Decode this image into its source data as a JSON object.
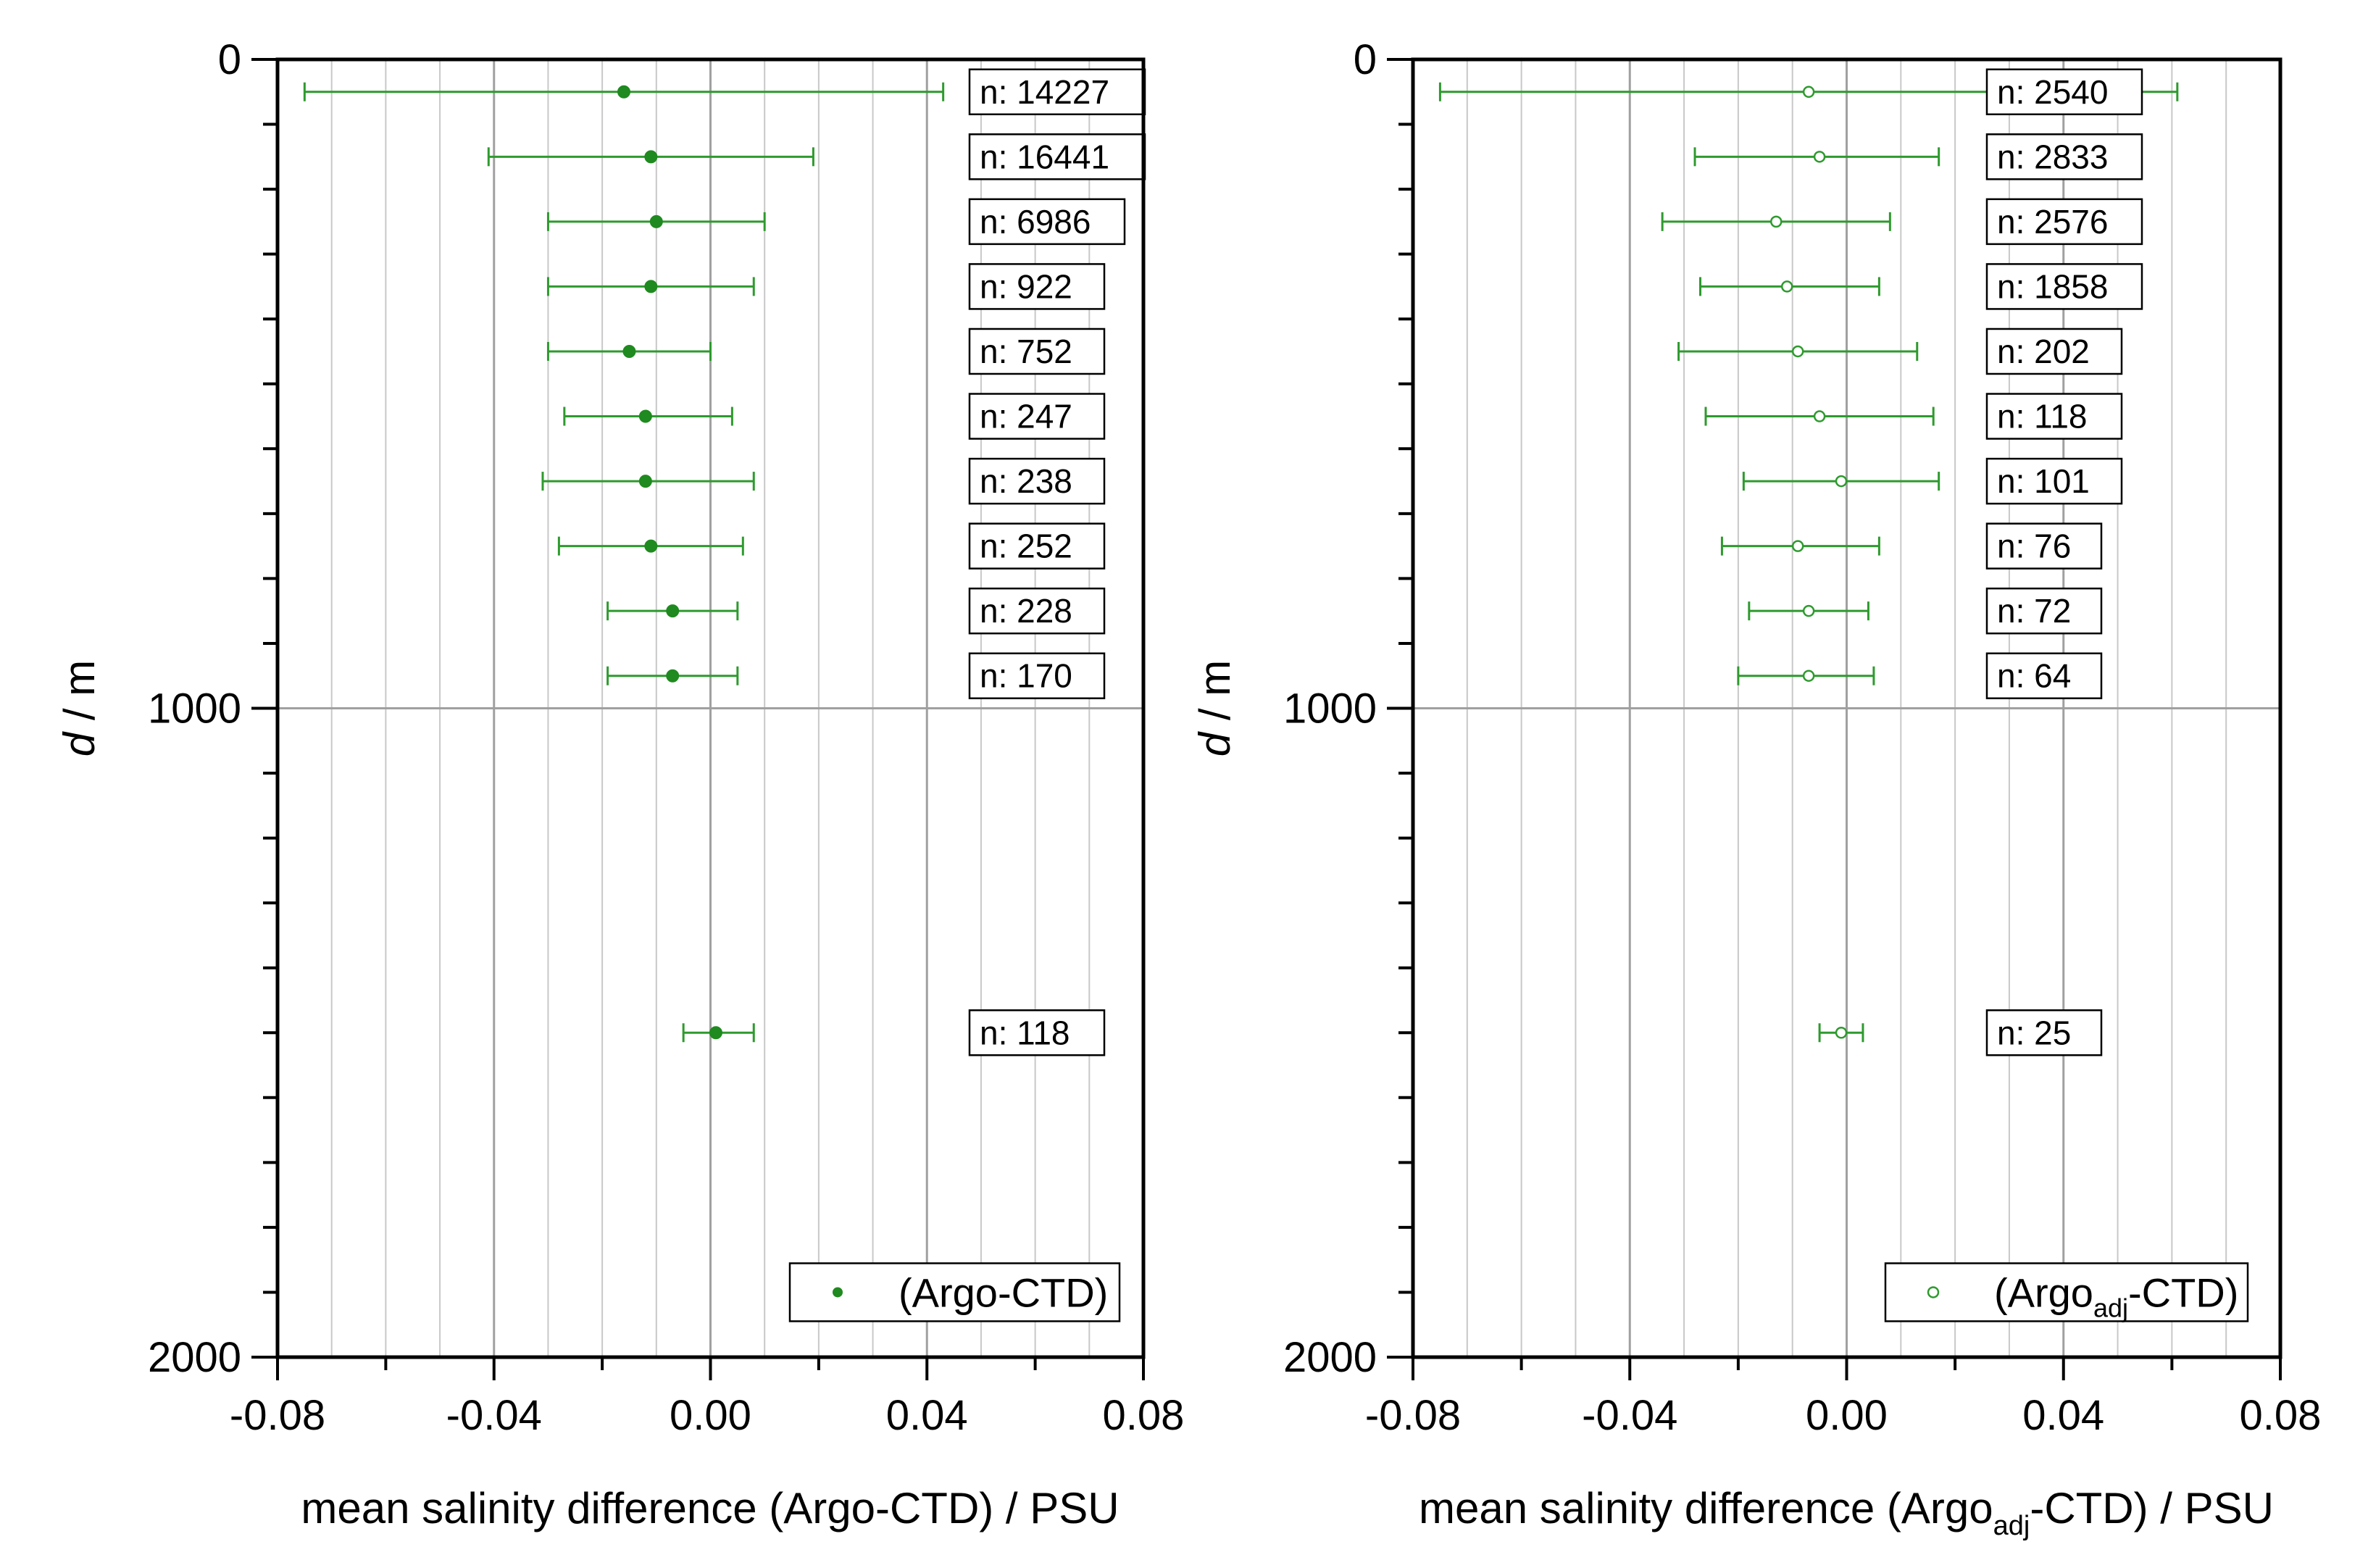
{
  "chart_data": [
    {
      "type": "scatter",
      "name": "left",
      "xlabel": "mean salinity difference (Argo-CTD) / PSU",
      "ylabel_italic": "d",
      "ylabel_rest": " / m",
      "xlim": [
        -0.08,
        0.08
      ],
      "ylim": [
        0,
        2000
      ],
      "xticks": [
        "-0.08",
        "-0.04",
        "0.00",
        "0.04",
        "0.08"
      ],
      "yticks": [
        "0",
        "1000",
        "2000"
      ],
      "legend": "(Argo-CTD)",
      "marker": "filled",
      "points": [
        {
          "depth": 50,
          "mean": -0.016,
          "low": -0.075,
          "high": 0.043,
          "n": "n: 14227"
        },
        {
          "depth": 150,
          "mean": -0.011,
          "low": -0.041,
          "high": 0.019,
          "n": "n: 16441"
        },
        {
          "depth": 250,
          "mean": -0.01,
          "low": -0.03,
          "high": 0.01,
          "n": "n: 6986"
        },
        {
          "depth": 350,
          "mean": -0.011,
          "low": -0.03,
          "high": 0.008,
          "n": "n: 922"
        },
        {
          "depth": 450,
          "mean": -0.015,
          "low": -0.03,
          "high": 0.0,
          "n": "n: 752"
        },
        {
          "depth": 550,
          "mean": -0.012,
          "low": -0.027,
          "high": 0.004,
          "n": "n: 247"
        },
        {
          "depth": 650,
          "mean": -0.012,
          "low": -0.031,
          "high": 0.008,
          "n": "n: 238"
        },
        {
          "depth": 750,
          "mean": -0.011,
          "low": -0.028,
          "high": 0.006,
          "n": "n: 252"
        },
        {
          "depth": 850,
          "mean": -0.007,
          "low": -0.019,
          "high": 0.005,
          "n": "n: 228"
        },
        {
          "depth": 950,
          "mean": -0.007,
          "low": -0.019,
          "high": 0.005,
          "n": "n: 170"
        },
        {
          "depth": 1500,
          "mean": 0.001,
          "low": -0.005,
          "high": 0.008,
          "n": "n: 118"
        }
      ]
    },
    {
      "type": "scatter",
      "name": "right",
      "xlabel_pre": "mean salinity difference (Argo",
      "xlabel_sub": "adj",
      "xlabel_post": "-CTD) / PSU",
      "ylabel_italic": "d",
      "ylabel_rest": " / m",
      "xlim": [
        -0.08,
        0.08
      ],
      "ylim": [
        0,
        2000
      ],
      "xticks": [
        "-0.08",
        "-0.04",
        "0.00",
        "0.04",
        "0.08"
      ],
      "yticks": [
        "0",
        "1000",
        "2000"
      ],
      "legend_pre": "(Argo",
      "legend_sub": "adj",
      "legend_post": "-CTD)",
      "marker": "open",
      "points": [
        {
          "depth": 50,
          "mean": -0.007,
          "low": -0.075,
          "high": 0.061,
          "n": "n: 2540"
        },
        {
          "depth": 150,
          "mean": -0.005,
          "low": -0.028,
          "high": 0.017,
          "n": "n: 2833"
        },
        {
          "depth": 250,
          "mean": -0.013,
          "low": -0.034,
          "high": 0.008,
          "n": "n: 2576"
        },
        {
          "depth": 350,
          "mean": -0.011,
          "low": -0.027,
          "high": 0.006,
          "n": "n: 1858"
        },
        {
          "depth": 450,
          "mean": -0.009,
          "low": -0.031,
          "high": 0.013,
          "n": "n: 202"
        },
        {
          "depth": 550,
          "mean": -0.005,
          "low": -0.026,
          "high": 0.016,
          "n": "n: 118"
        },
        {
          "depth": 650,
          "mean": -0.001,
          "low": -0.019,
          "high": 0.017,
          "n": "n: 101"
        },
        {
          "depth": 750,
          "mean": -0.009,
          "low": -0.023,
          "high": 0.006,
          "n": "n: 76"
        },
        {
          "depth": 850,
          "mean": -0.007,
          "low": -0.018,
          "high": 0.004,
          "n": "n: 72"
        },
        {
          "depth": 950,
          "mean": -0.007,
          "low": -0.02,
          "high": 0.005,
          "n": "n: 64"
        },
        {
          "depth": 1500,
          "mean": -0.001,
          "low": -0.005,
          "high": 0.003,
          "n": "n: 25"
        }
      ]
    }
  ],
  "colors": {
    "series": "#2e9a2e",
    "marker_fill": "#1f8a1f",
    "grid": "#c8c8c8",
    "grid_major": "#a0a0a0",
    "axis": "#000000"
  }
}
